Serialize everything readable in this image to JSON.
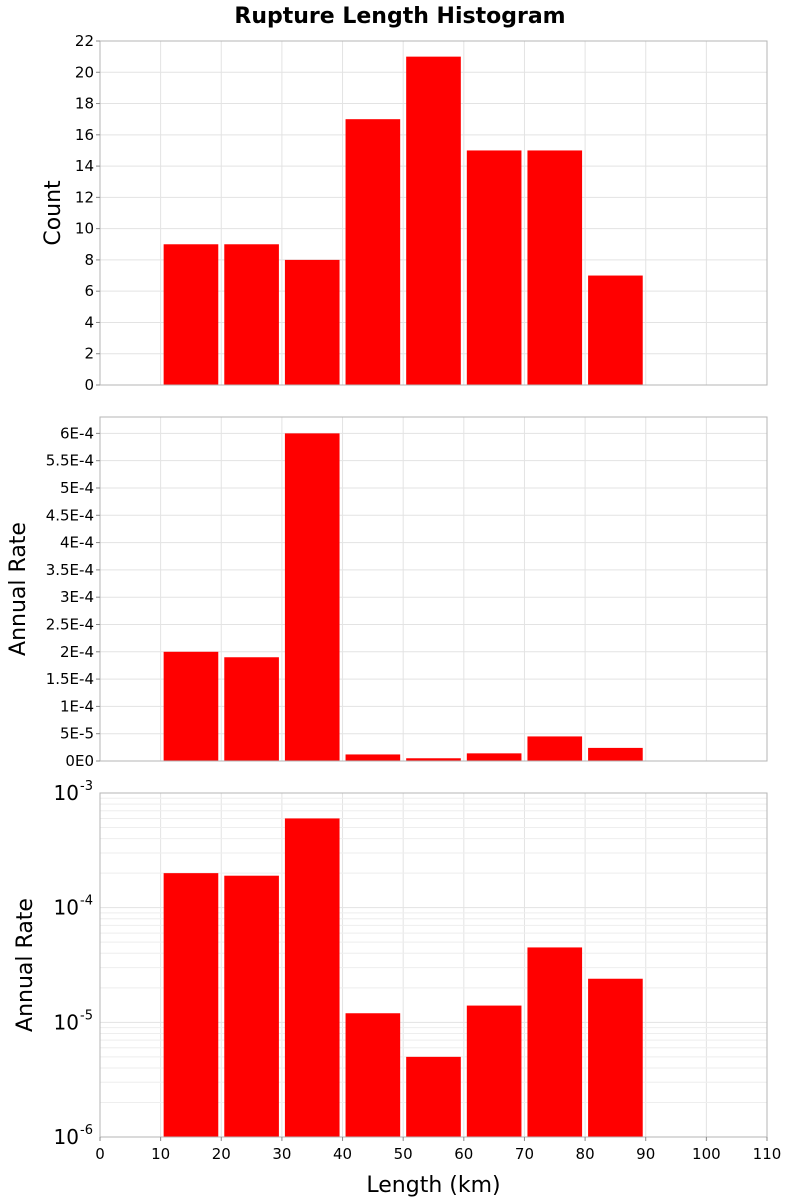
{
  "figure": {
    "title": "Rupture Length Histogram"
  },
  "colors": {
    "bar": "#ff0000",
    "grid": "#e3e3e3",
    "frame": "#b5b5b5"
  },
  "chart_data": [
    {
      "type": "bar",
      "title": "",
      "xlabel": "",
      "ylabel": "Count",
      "x": [
        15,
        25,
        35,
        45,
        55,
        65,
        75,
        85
      ],
      "bin_width": 10,
      "values": [
        9,
        9,
        8,
        17,
        21,
        15,
        15,
        7
      ],
      "xlim": [
        0,
        110
      ],
      "ylim": [
        0,
        22
      ],
      "yticks": [
        0,
        2,
        4,
        6,
        8,
        10,
        12,
        14,
        16,
        18,
        20,
        22
      ],
      "ytick_labels": [
        "0",
        "2",
        "4",
        "6",
        "8",
        "10",
        "12",
        "14",
        "16",
        "18",
        "20",
        "22"
      ],
      "yscale": "linear",
      "grid": true
    },
    {
      "type": "bar",
      "title": "",
      "xlabel": "",
      "ylabel": "Annual Rate",
      "x": [
        15,
        25,
        35,
        45,
        55,
        65,
        75,
        85
      ],
      "bin_width": 10,
      "values": [
        0.0002,
        0.00019,
        0.0006,
        1.2e-05,
        5e-06,
        1.4e-05,
        4.5e-05,
        2.4e-05
      ],
      "xlim": [
        0,
        110
      ],
      "ylim": [
        0,
        0.00063
      ],
      "yticks": [
        0,
        5e-05,
        0.0001,
        0.00015,
        0.0002,
        0.00025,
        0.0003,
        0.00035,
        0.0004,
        0.00045,
        0.0005,
        0.00055,
        0.0006
      ],
      "ytick_labels": [
        "0E0",
        "5E-5",
        "1E-4",
        "1.5E-4",
        "2E-4",
        "2.5E-4",
        "3E-4",
        "3.5E-4",
        "4E-4",
        "4.5E-4",
        "5E-4",
        "5.5E-4",
        "6E-4"
      ],
      "yscale": "linear",
      "grid": true
    },
    {
      "type": "bar",
      "title": "",
      "xlabel": "Length (km)",
      "ylabel": "Annual Rate",
      "x": [
        15,
        25,
        35,
        45,
        55,
        65,
        75,
        85
      ],
      "bin_width": 10,
      "values": [
        0.0002,
        0.00019,
        0.0006,
        1.2e-05,
        5e-06,
        1.4e-05,
        4.5e-05,
        2.4e-05
      ],
      "xlim": [
        0,
        110
      ],
      "ylim": [
        1e-06,
        0.001
      ],
      "yticks": [
        1e-06,
        1e-05,
        0.0001,
        0.001
      ],
      "ytick_base": [
        "10",
        "10",
        "10",
        "10"
      ],
      "ytick_exp": [
        "-6",
        "-5",
        "-4",
        "-3"
      ],
      "xticks": [
        0,
        10,
        20,
        30,
        40,
        50,
        60,
        70,
        80,
        90,
        100,
        110
      ],
      "xtick_labels": [
        "0",
        "10",
        "20",
        "30",
        "40",
        "50",
        "60",
        "70",
        "80",
        "90",
        "100",
        "110"
      ],
      "yscale": "log",
      "grid": true
    }
  ]
}
